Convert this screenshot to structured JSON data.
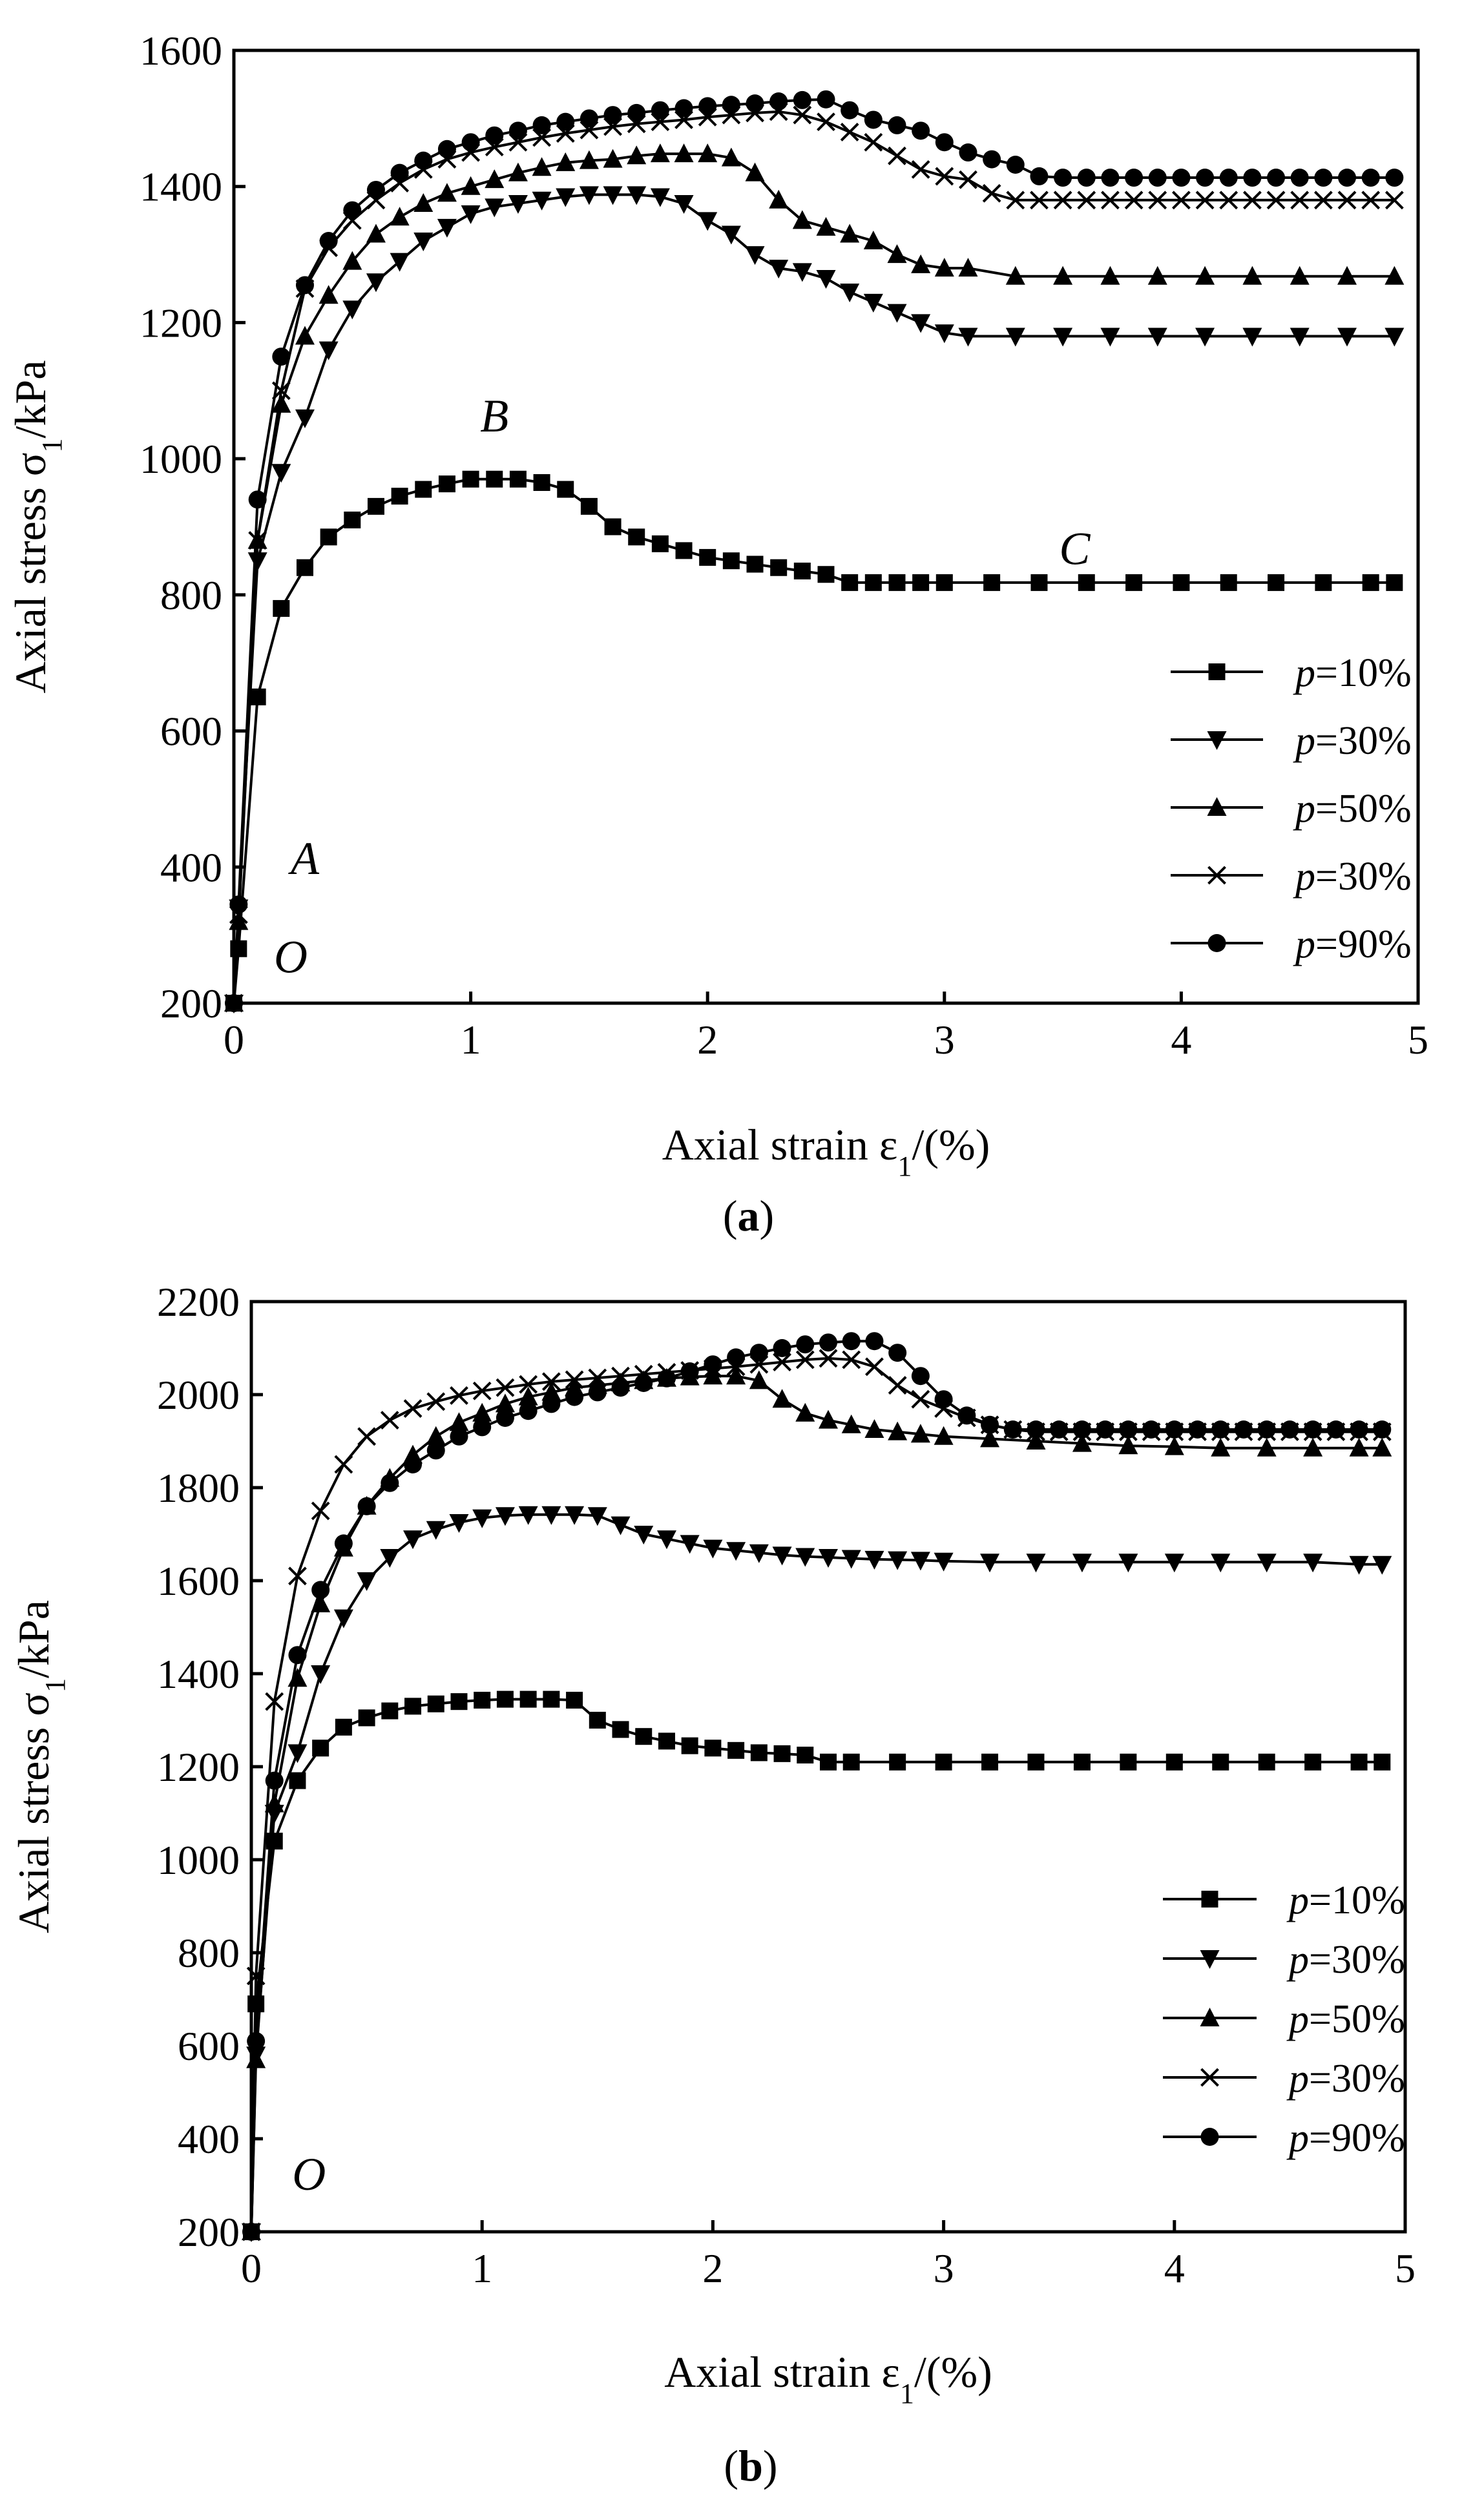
{
  "chart_data": [
    {
      "type": "line",
      "panel_label": "(a)",
      "xlabel": "Axial strain ε1/(%)",
      "ylabel": "Axial stress σ1/kPa",
      "xlim": [
        0,
        5
      ],
      "ylim": [
        200,
        1600
      ],
      "xticks": [
        0,
        1,
        2,
        3,
        4,
        5
      ],
      "yticks": [
        200,
        400,
        600,
        800,
        1000,
        1200,
        1400,
        1600
      ],
      "legend_position": "bottom-right",
      "annotations": [
        {
          "text": "O",
          "x": 0.24,
          "y": 245
        },
        {
          "text": "A",
          "x": 0.3,
          "y": 390
        },
        {
          "text": "B",
          "x": 1.1,
          "y": 1040
        },
        {
          "text": "C",
          "x": 3.55,
          "y": 845
        }
      ],
      "series": [
        {
          "name": "p=10%",
          "marker": "square",
          "x": [
            0,
            0.02,
            0.1,
            0.2,
            0.3,
            0.4,
            0.5,
            0.6,
            0.7,
            0.8,
            0.9,
            1.0,
            1.1,
            1.2,
            1.3,
            1.4,
            1.5,
            1.6,
            1.7,
            1.8,
            1.9,
            2.0,
            2.1,
            2.2,
            2.3,
            2.4,
            2.5,
            2.6,
            2.7,
            2.8,
            2.9,
            3.0,
            3.2,
            3.4,
            3.6,
            3.8,
            4.0,
            4.2,
            4.4,
            4.6,
            4.8,
            4.9
          ],
          "y": [
            200,
            280,
            650,
            780,
            840,
            885,
            910,
            930,
            945,
            955,
            963,
            970,
            970,
            970,
            965,
            955,
            930,
            900,
            885,
            875,
            865,
            855,
            850,
            845,
            840,
            835,
            830,
            818,
            818,
            818,
            818,
            818,
            818,
            818,
            818,
            818,
            818,
            818,
            818,
            818,
            818,
            818
          ]
        },
        {
          "name": "p=30%",
          "marker": "tri-down",
          "x": [
            0,
            0.02,
            0.1,
            0.2,
            0.3,
            0.4,
            0.5,
            0.6,
            0.7,
            0.8,
            0.9,
            1.0,
            1.1,
            1.2,
            1.3,
            1.4,
            1.5,
            1.6,
            1.7,
            1.8,
            1.9,
            2.0,
            2.1,
            2.2,
            2.3,
            2.4,
            2.5,
            2.6,
            2.7,
            2.8,
            2.9,
            3.0,
            3.1,
            3.3,
            3.5,
            3.7,
            3.9,
            4.1,
            4.3,
            4.5,
            4.7,
            4.9
          ],
          "y": [
            200,
            340,
            850,
            980,
            1060,
            1160,
            1220,
            1260,
            1290,
            1320,
            1340,
            1360,
            1370,
            1375,
            1380,
            1385,
            1388,
            1388,
            1388,
            1385,
            1375,
            1350,
            1330,
            1300,
            1280,
            1275,
            1265,
            1245,
            1230,
            1215,
            1200,
            1185,
            1180,
            1180,
            1180,
            1180,
            1180,
            1180,
            1180,
            1180,
            1180,
            1180
          ]
        },
        {
          "name": "p=50%",
          "marker": "tri-up",
          "x": [
            0,
            0.02,
            0.1,
            0.2,
            0.3,
            0.4,
            0.5,
            0.6,
            0.7,
            0.8,
            0.9,
            1.0,
            1.1,
            1.2,
            1.3,
            1.4,
            1.5,
            1.6,
            1.7,
            1.8,
            1.9,
            2.0,
            2.1,
            2.2,
            2.3,
            2.4,
            2.5,
            2.6,
            2.7,
            2.8,
            2.9,
            3.0,
            3.1,
            3.3,
            3.5,
            3.7,
            3.9,
            4.1,
            4.3,
            4.5,
            4.7,
            4.9
          ],
          "y": [
            200,
            320,
            880,
            1080,
            1180,
            1240,
            1290,
            1330,
            1355,
            1375,
            1390,
            1400,
            1410,
            1420,
            1428,
            1435,
            1438,
            1440,
            1445,
            1448,
            1448,
            1448,
            1442,
            1420,
            1380,
            1350,
            1340,
            1330,
            1320,
            1300,
            1285,
            1280,
            1280,
            1268,
            1268,
            1268,
            1268,
            1268,
            1268,
            1268,
            1268,
            1268
          ]
        },
        {
          "name": "p=30%",
          "marker": "x",
          "x": [
            0,
            0.02,
            0.1,
            0.2,
            0.3,
            0.4,
            0.5,
            0.6,
            0.7,
            0.8,
            0.9,
            1.0,
            1.1,
            1.2,
            1.3,
            1.4,
            1.5,
            1.6,
            1.7,
            1.8,
            1.9,
            2.0,
            2.1,
            2.2,
            2.3,
            2.4,
            2.5,
            2.6,
            2.7,
            2.8,
            2.9,
            3.0,
            3.1,
            3.2,
            3.3,
            3.4,
            3.5,
            3.6,
            3.7,
            3.8,
            3.9,
            4.0,
            4.1,
            4.2,
            4.3,
            4.4,
            4.5,
            4.6,
            4.7,
            4.8,
            4.9
          ],
          "y": [
            200,
            330,
            880,
            1100,
            1250,
            1310,
            1350,
            1380,
            1405,
            1425,
            1440,
            1450,
            1458,
            1465,
            1472,
            1478,
            1483,
            1488,
            1492,
            1495,
            1498,
            1502,
            1505,
            1508,
            1510,
            1505,
            1495,
            1480,
            1465,
            1445,
            1425,
            1415,
            1410,
            1390,
            1380,
            1380,
            1380,
            1380,
            1380,
            1380,
            1380,
            1380,
            1380,
            1380,
            1380,
            1380,
            1380,
            1380,
            1380,
            1380,
            1380
          ]
        },
        {
          "name": "p=90%",
          "marker": "circle",
          "x": [
            0,
            0.02,
            0.1,
            0.2,
            0.3,
            0.4,
            0.5,
            0.6,
            0.7,
            0.8,
            0.9,
            1.0,
            1.1,
            1.2,
            1.3,
            1.4,
            1.5,
            1.6,
            1.7,
            1.8,
            1.9,
            2.0,
            2.1,
            2.2,
            2.3,
            2.4,
            2.5,
            2.6,
            2.7,
            2.8,
            2.9,
            3.0,
            3.1,
            3.2,
            3.3,
            3.4,
            3.5,
            3.6,
            3.7,
            3.8,
            3.9,
            4.0,
            4.1,
            4.2,
            4.3,
            4.4,
            4.5,
            4.6,
            4.7,
            4.8,
            4.9
          ],
          "y": [
            200,
            345,
            940,
            1150,
            1255,
            1320,
            1365,
            1395,
            1420,
            1438,
            1455,
            1465,
            1475,
            1482,
            1490,
            1495,
            1500,
            1505,
            1508,
            1512,
            1515,
            1518,
            1520,
            1522,
            1525,
            1527,
            1528,
            1512,
            1498,
            1490,
            1482,
            1465,
            1450,
            1440,
            1432,
            1415,
            1413,
            1413,
            1413,
            1413,
            1413,
            1413,
            1413,
            1413,
            1413,
            1413,
            1413,
            1413,
            1413,
            1413,
            1413
          ]
        }
      ]
    },
    {
      "type": "line",
      "panel_label": "(b)",
      "xlabel": "Axial strain ε1/(%)",
      "ylabel": "Axial stress σ1/kPa",
      "xlim": [
        0,
        5
      ],
      "ylim": [
        200,
        2200
      ],
      "xticks": [
        0,
        1,
        2,
        3,
        4,
        5
      ],
      "yticks": [
        200,
        400,
        600,
        800,
        1000,
        1200,
        1400,
        1600,
        1800,
        2000,
        2200
      ],
      "legend_position": "bottom-right",
      "annotations": [
        {
          "text": "O",
          "x": 0.25,
          "y": 290
        }
      ],
      "series": [
        {
          "name": "p=10%",
          "marker": "square",
          "x": [
            0,
            0.02,
            0.1,
            0.2,
            0.3,
            0.4,
            0.5,
            0.6,
            0.7,
            0.8,
            0.9,
            1.0,
            1.1,
            1.2,
            1.3,
            1.4,
            1.5,
            1.6,
            1.7,
            1.8,
            1.9,
            2.0,
            2.1,
            2.2,
            2.3,
            2.4,
            2.5,
            2.6,
            2.8,
            3.0,
            3.2,
            3.4,
            3.6,
            3.8,
            4.0,
            4.2,
            4.4,
            4.6,
            4.8,
            4.9
          ],
          "y": [
            200,
            690,
            1040,
            1170,
            1240,
            1285,
            1305,
            1320,
            1330,
            1335,
            1340,
            1343,
            1345,
            1345,
            1345,
            1343,
            1300,
            1280,
            1265,
            1255,
            1245,
            1240,
            1235,
            1230,
            1228,
            1225,
            1210,
            1210,
            1210,
            1210,
            1210,
            1210,
            1210,
            1210,
            1210,
            1210,
            1210,
            1210,
            1210,
            1210
          ]
        },
        {
          "name": "p=30%",
          "marker": "tri-down",
          "x": [
            0,
            0.02,
            0.1,
            0.2,
            0.3,
            0.4,
            0.5,
            0.6,
            0.7,
            0.8,
            0.9,
            1.0,
            1.1,
            1.2,
            1.3,
            1.4,
            1.5,
            1.6,
            1.7,
            1.8,
            1.9,
            2.0,
            2.1,
            2.2,
            2.3,
            2.4,
            2.5,
            2.6,
            2.7,
            2.8,
            2.9,
            3.0,
            3.2,
            3.4,
            3.6,
            3.8,
            4.0,
            4.2,
            4.4,
            4.6,
            4.8,
            4.9
          ],
          "y": [
            200,
            580,
            1100,
            1230,
            1400,
            1520,
            1600,
            1650,
            1690,
            1710,
            1725,
            1735,
            1740,
            1742,
            1742,
            1742,
            1740,
            1720,
            1700,
            1690,
            1680,
            1670,
            1665,
            1660,
            1655,
            1652,
            1650,
            1648,
            1646,
            1645,
            1644,
            1642,
            1640,
            1640,
            1640,
            1640,
            1640,
            1640,
            1640,
            1640,
            1635,
            1635
          ]
        },
        {
          "name": "p=50%",
          "marker": "tri-up",
          "x": [
            0,
            0.02,
            0.1,
            0.2,
            0.3,
            0.4,
            0.5,
            0.6,
            0.7,
            0.8,
            0.9,
            1.0,
            1.1,
            1.2,
            1.3,
            1.4,
            1.5,
            1.6,
            1.7,
            1.8,
            1.9,
            2.0,
            2.1,
            2.2,
            2.3,
            2.4,
            2.5,
            2.6,
            2.7,
            2.8,
            2.9,
            3.0,
            3.2,
            3.4,
            3.6,
            3.8,
            4.0,
            4.2,
            4.4,
            4.6,
            4.8,
            4.9
          ],
          "y": [
            200,
            570,
            1120,
            1390,
            1550,
            1670,
            1760,
            1820,
            1870,
            1910,
            1940,
            1960,
            1980,
            1995,
            2005,
            2015,
            2020,
            2025,
            2030,
            2035,
            2038,
            2040,
            2040,
            2030,
            1990,
            1960,
            1945,
            1935,
            1925,
            1920,
            1915,
            1910,
            1905,
            1900,
            1895,
            1890,
            1888,
            1885,
            1885,
            1885,
            1885,
            1885
          ]
        },
        {
          "name": "p=30%",
          "marker": "x",
          "x": [
            0,
            0.02,
            0.1,
            0.2,
            0.3,
            0.4,
            0.5,
            0.6,
            0.7,
            0.8,
            0.9,
            1.0,
            1.1,
            1.2,
            1.3,
            1.4,
            1.5,
            1.6,
            1.7,
            1.8,
            1.9,
            2.0,
            2.1,
            2.2,
            2.3,
            2.4,
            2.5,
            2.6,
            2.7,
            2.8,
            2.9,
            3.0,
            3.1,
            3.2,
            3.3,
            3.4,
            3.5,
            3.6,
            3.7,
            3.8,
            3.9,
            4.0,
            4.1,
            4.2,
            4.3,
            4.4,
            4.5,
            4.6,
            4.7,
            4.8,
            4.9
          ],
          "y": [
            200,
            750,
            1340,
            1610,
            1750,
            1850,
            1910,
            1945,
            1970,
            1985,
            1998,
            2008,
            2015,
            2022,
            2028,
            2032,
            2036,
            2040,
            2044,
            2048,
            2052,
            2056,
            2060,
            2065,
            2070,
            2075,
            2078,
            2075,
            2060,
            2020,
            1990,
            1970,
            1950,
            1935,
            1925,
            1920,
            1920,
            1920,
            1920,
            1920,
            1920,
            1920,
            1920,
            1920,
            1920,
            1920,
            1920,
            1920,
            1920,
            1920,
            1920
          ]
        },
        {
          "name": "p=90%",
          "marker": "circle",
          "x": [
            0,
            0.02,
            0.1,
            0.2,
            0.3,
            0.4,
            0.5,
            0.6,
            0.7,
            0.8,
            0.9,
            1.0,
            1.1,
            1.2,
            1.3,
            1.4,
            1.5,
            1.6,
            1.7,
            1.8,
            1.9,
            2.0,
            2.1,
            2.2,
            2.3,
            2.4,
            2.5,
            2.6,
            2.7,
            2.8,
            2.9,
            3.0,
            3.1,
            3.2,
            3.3,
            3.4,
            3.5,
            3.6,
            3.7,
            3.8,
            3.9,
            4.0,
            4.1,
            4.2,
            4.3,
            4.4,
            4.5,
            4.6,
            4.7,
            4.8,
            4.9
          ],
          "y": [
            200,
            610,
            1170,
            1440,
            1580,
            1680,
            1760,
            1810,
            1850,
            1880,
            1910,
            1930,
            1950,
            1965,
            1980,
            1995,
            2005,
            2015,
            2025,
            2035,
            2050,
            2065,
            2080,
            2090,
            2100,
            2108,
            2112,
            2115,
            2115,
            2090,
            2040,
            1990,
            1955,
            1935,
            1925,
            1925,
            1925,
            1925,
            1925,
            1925,
            1925,
            1925,
            1925,
            1925,
            1925,
            1925,
            1925,
            1925,
            1925,
            1925,
            1925
          ]
        }
      ]
    }
  ]
}
